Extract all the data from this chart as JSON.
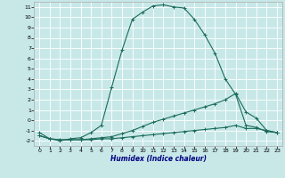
{
  "title": "",
  "xlabel": "Humidex (Indice chaleur)",
  "bg_color": "#c8e8e8",
  "line_color": "#1a6b5a",
  "grid_color": "#ffffff",
  "xlim": [
    -0.5,
    23.5
  ],
  "ylim": [
    -2.5,
    11.5
  ],
  "xticks": [
    0,
    1,
    2,
    3,
    4,
    5,
    6,
    7,
    8,
    9,
    10,
    11,
    12,
    13,
    14,
    15,
    16,
    17,
    18,
    19,
    20,
    21,
    22,
    23
  ],
  "yticks": [
    -2,
    -1,
    0,
    1,
    2,
    3,
    4,
    5,
    6,
    7,
    8,
    9,
    10,
    11
  ],
  "line1_x": [
    0,
    1,
    2,
    3,
    4,
    5,
    6,
    7,
    8,
    9,
    10,
    11,
    12,
    13,
    14,
    15,
    16,
    17,
    18,
    19,
    20,
    21,
    22,
    23
  ],
  "line1_y": [
    -1.2,
    -1.8,
    -2.0,
    -1.8,
    -1.7,
    -1.2,
    -0.5,
    3.2,
    6.8,
    9.8,
    10.5,
    11.1,
    11.2,
    11.0,
    10.9,
    9.8,
    8.3,
    6.5,
    4.0,
    2.5,
    -0.5,
    -0.7,
    -1.1,
    -1.2
  ],
  "line2_x": [
    0,
    1,
    2,
    3,
    4,
    5,
    6,
    7,
    8,
    9,
    10,
    11,
    12,
    13,
    14,
    15,
    16,
    17,
    18,
    19,
    20,
    21,
    22,
    23
  ],
  "line2_y": [
    -1.5,
    -1.8,
    -1.9,
    -1.9,
    -1.9,
    -1.8,
    -1.7,
    -1.6,
    -1.3,
    -1.0,
    -0.6,
    -0.2,
    0.1,
    0.4,
    0.7,
    1.0,
    1.3,
    1.6,
    2.0,
    2.6,
    0.8,
    0.2,
    -1.0,
    -1.2
  ],
  "line3_x": [
    0,
    1,
    2,
    3,
    4,
    5,
    6,
    7,
    8,
    9,
    10,
    11,
    12,
    13,
    14,
    15,
    16,
    17,
    18,
    19,
    20,
    21,
    22,
    23
  ],
  "line3_y": [
    -1.5,
    -1.8,
    -1.9,
    -1.9,
    -1.9,
    -1.9,
    -1.8,
    -1.8,
    -1.7,
    -1.6,
    -1.5,
    -1.4,
    -1.3,
    -1.2,
    -1.1,
    -1.0,
    -0.9,
    -0.8,
    -0.7,
    -0.5,
    -0.8,
    -0.8,
    -1.0,
    -1.2
  ]
}
